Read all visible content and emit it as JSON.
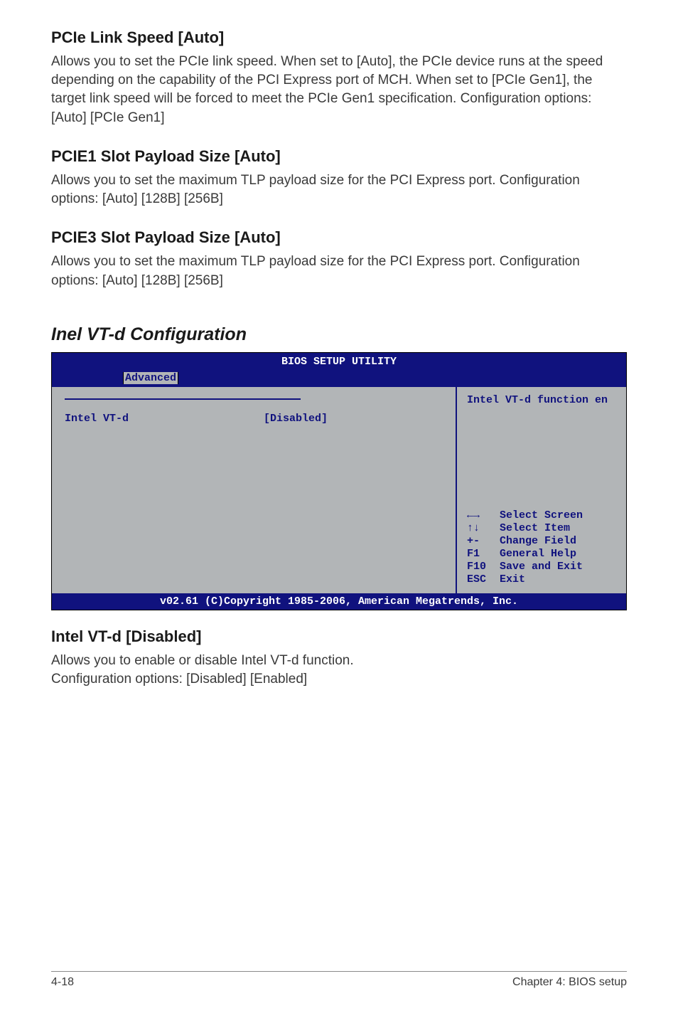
{
  "sections": {
    "pcie_link_speed": {
      "heading": "PCIe Link Speed [Auto]",
      "body": "Allows you to set the PCIe link speed. When set to [Auto], the PCIe device runs at the speed depending on the capability of the PCI Express port of MCH. When set to [PCIe Gen1], the target link speed will be forced to meet the PCIe Gen1 specification. Configuration options: [Auto] [PCIe Gen1]"
    },
    "pcie1_slot": {
      "heading": "PCIE1 Slot Payload Size [Auto]",
      "body": "Allows you to set the maximum TLP payload size for the PCI Express port. Configuration options: [Auto] [128B] [256B]"
    },
    "pcie3_slot": {
      "heading": "PCIE3 Slot Payload Size [Auto]",
      "body": "Allows you to set the maximum TLP payload size for the PCI Express port. Configuration options: [Auto] [128B] [256B]"
    },
    "vt_d_config_title": "Inel VT-d Configuration",
    "intel_vtd": {
      "heading": "Intel VT-d [Disabled]",
      "body1": "Allows you to enable or disable Intel VT-d function.",
      "body2": "Configuration options: [Disabled] [Enabled]"
    }
  },
  "bios": {
    "title": "BIOS SETUP UTILITY",
    "tab": "Advanced",
    "left": {
      "item_label": "Intel VT-d",
      "item_value": "[Disabled]"
    },
    "right": {
      "help_top": "Intel VT-d function en",
      "keys": [
        {
          "key": "←→",
          "label": "Select Screen"
        },
        {
          "key": "↑↓",
          "label": "Select Item"
        },
        {
          "key": "+-",
          "label": "Change Field"
        },
        {
          "key": "F1",
          "label": "General Help"
        },
        {
          "key": "F10",
          "label": "Save and Exit"
        },
        {
          "key": "ESC",
          "label": "Exit"
        }
      ]
    },
    "footer": "v02.61 (C)Copyright 1985-2006, American Megatrends, Inc.",
    "colors": {
      "bar_bg": "#10127e",
      "panel_bg": "#b2b5b7",
      "text_blue": "#10127e"
    }
  },
  "page_footer": {
    "left": "4-18",
    "right": "Chapter 4: BIOS setup"
  }
}
